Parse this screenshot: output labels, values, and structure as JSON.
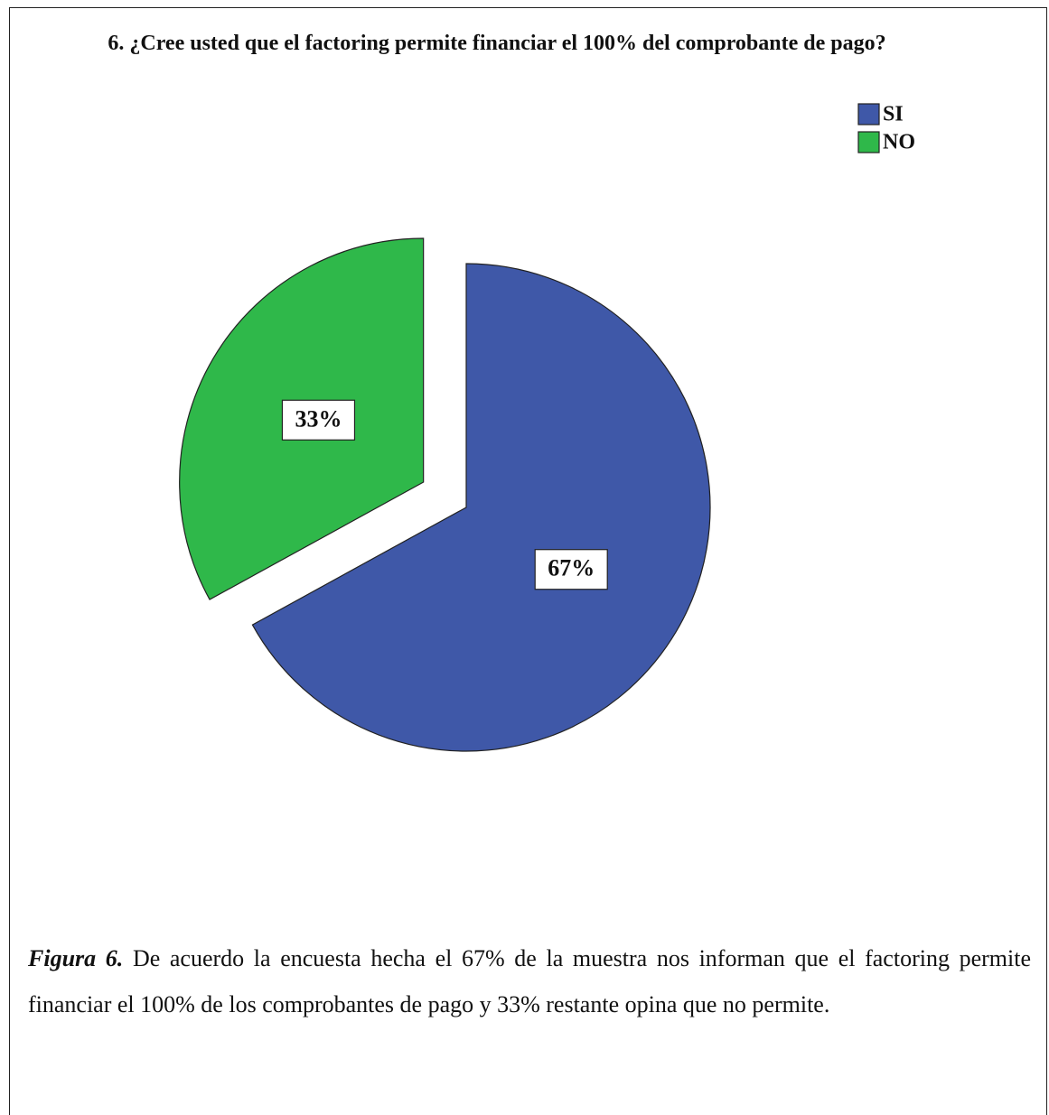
{
  "chart_data": {
    "type": "pie",
    "title": "6. ¿Cree usted que el factoring permite financiar el 100% del comprobante de pago?",
    "categories": [
      "SI",
      "NO"
    ],
    "values": [
      67,
      33
    ],
    "value_labels": [
      "67%",
      "33%"
    ],
    "colors": [
      "#3f58a8",
      "#2fb84a"
    ],
    "explode": [
      false,
      true
    ],
    "legend": "top-right"
  },
  "caption": {
    "label": "Figura 6.",
    "text": "De acuerdo la encuesta hecha el 67% de la muestra nos informan que el factoring permite financiar el 100% de los comprobantes de pago y 33% restante opina que no permite."
  }
}
